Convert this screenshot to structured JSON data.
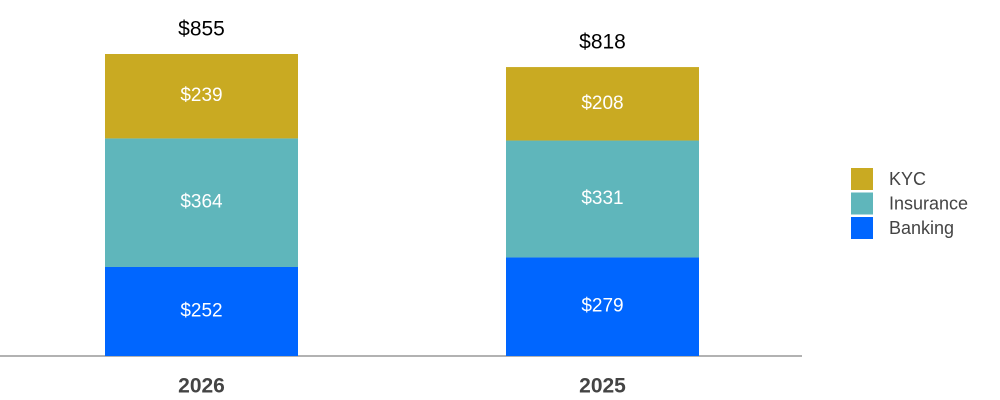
{
  "chart_data": {
    "type": "stacked_bar",
    "categories": [
      "2026",
      "2025"
    ],
    "series": [
      {
        "name": "Banking",
        "color": "#0066ff",
        "values": [
          252,
          279
        ],
        "value_labels": [
          "$252",
          "$279"
        ]
      },
      {
        "name": "Insurance",
        "color": "#5fb6bb",
        "values": [
          364,
          331
        ],
        "value_labels": [
          "$364",
          "$331"
        ]
      },
      {
        "name": "KYC",
        "color": "#c9aa22",
        "values": [
          239,
          208
        ],
        "value_labels": [
          "$239",
          "$208"
        ]
      }
    ],
    "totals": [
      855,
      818
    ],
    "total_labels": [
      "$855",
      "$818"
    ],
    "legend": "right"
  }
}
